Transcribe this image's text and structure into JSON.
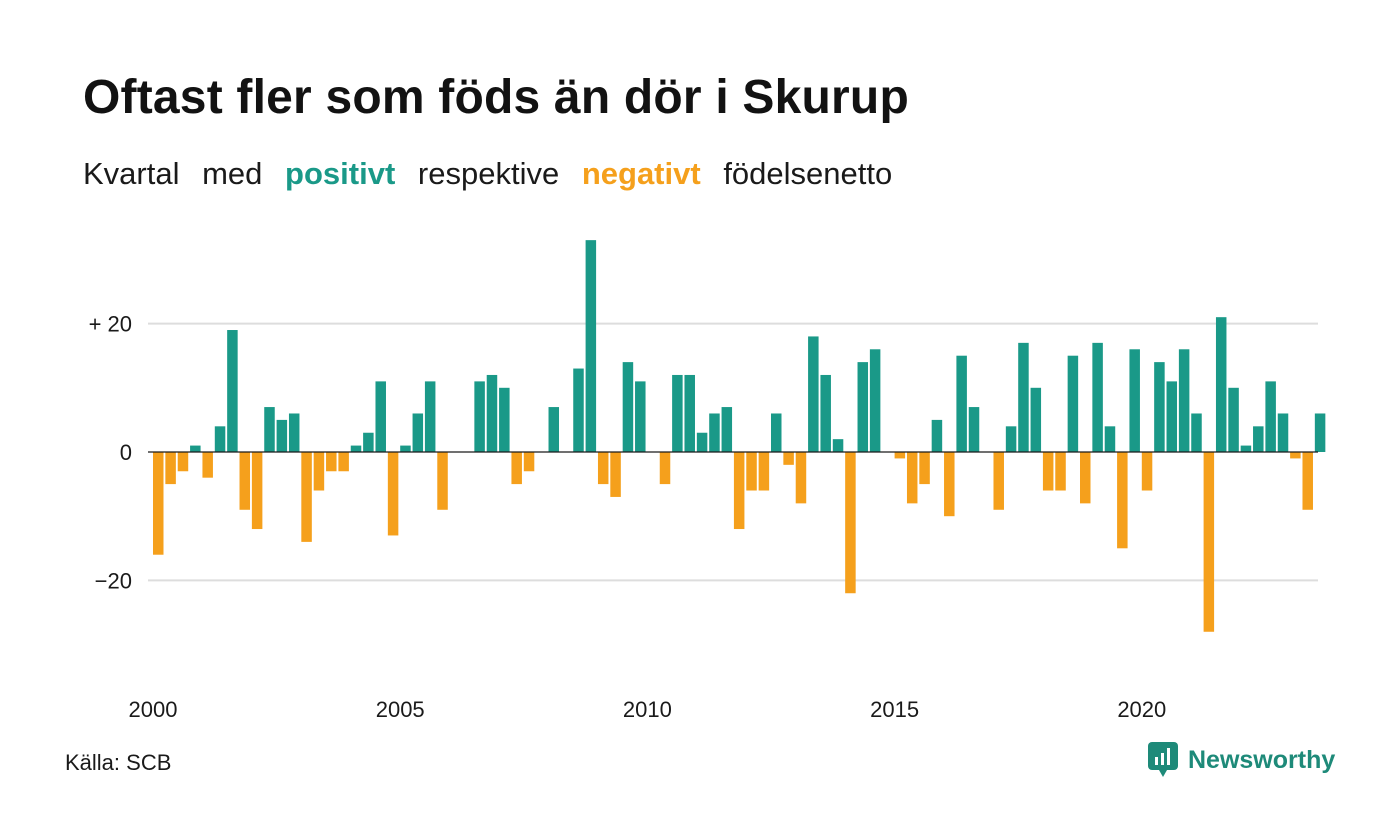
{
  "title": "Oftast fler som föds än dör i Skurup",
  "subtitle": {
    "w1": "Kvartal",
    "w2": "med",
    "positive": "positivt",
    "w3": "respektive",
    "negative": "negativt",
    "w4": "födelsenetto"
  },
  "colors": {
    "positive": "#1a9988",
    "negative": "#f5a01c",
    "grid": "#dddddd",
    "brand": "#1e8a79"
  },
  "source": "Källa: SCB",
  "brand": {
    "name": "Newsworthy",
    "icon": "newsworthy-logo-icon"
  },
  "chart_data": {
    "type": "bar",
    "title": "Oftast fler som föds än dör i Skurup",
    "ylim": [
      -30,
      33
    ],
    "y_ticks": [
      {
        "value": 20,
        "label": "+ 20"
      },
      {
        "value": 0,
        "label": "0"
      },
      {
        "value": -20,
        "label": "−20"
      }
    ],
    "x_ticks": [
      "2000",
      "2005",
      "2010",
      "2015",
      "2020"
    ],
    "x_start_year": 2000,
    "grid": true,
    "values": [
      -16,
      -5,
      -3,
      1,
      -4,
      4,
      19,
      -9,
      -12,
      7,
      5,
      6,
      -14,
      -6,
      -3,
      -3,
      1,
      3,
      11,
      -13,
      1,
      6,
      11,
      -9,
      0,
      0,
      11,
      12,
      10,
      -5,
      -3,
      0,
      7,
      0,
      13,
      33,
      -5,
      -7,
      14,
      11,
      0,
      -5,
      12,
      12,
      3,
      6,
      7,
      -12,
      -6,
      -6,
      6,
      -2,
      -8,
      18,
      12,
      2,
      -22,
      14,
      16,
      0,
      -1,
      -8,
      -5,
      5,
      -10,
      15,
      7,
      0,
      -9,
      4,
      17,
      10,
      -6,
      -6,
      15,
      -8,
      17,
      4,
      -15,
      16,
      -6,
      14,
      11,
      16,
      6,
      -28,
      21,
      10,
      1,
      4,
      11,
      6,
      -1,
      -9,
      6
    ]
  }
}
